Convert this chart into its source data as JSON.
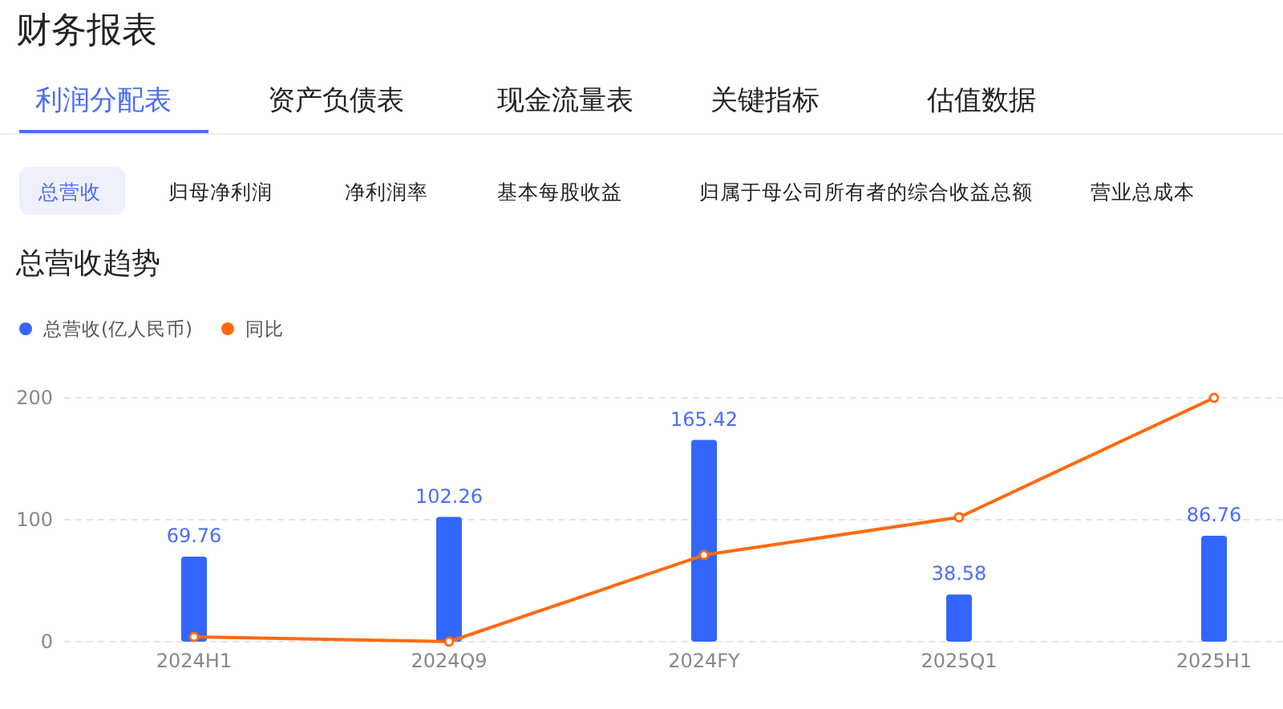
{
  "chart_data": {
    "type": "bar",
    "title": "总营收趋势",
    "annotations": [
      "财务报表",
      "利润分配表",
      "资产负债表",
      "现金流量表",
      "关键指标",
      "估值数据",
      "总营收",
      "归母净利润",
      "净利润率",
      "基本每股收益",
      "归属于母公司所有者的综合收益总额",
      "营业总成本"
    ],
    "categories": [
      "2024H1",
      "2024Q9",
      "2024FY",
      "2025Q1",
      "2025H1"
    ],
    "series": [
      {
        "name": "总营收(亿人民币)",
        "color": "#3366ff",
        "values": [
          69.76,
          102.26,
          165.42,
          38.58,
          86.76
        ],
        "value_labels": [
          "69.76",
          "102.26",
          "165.42",
          "38.58",
          "86.76"
        ]
      },
      {
        "name": "同比",
        "type": "line",
        "color": "#ff6a10",
        "values": [
          4,
          0,
          71,
          102,
          200
        ]
      }
    ],
    "ylim": [
      0,
      200
    ],
    "yticks": [
      0,
      100,
      200
    ],
    "grid": "y",
    "legend": "top left",
    "marker": "circle"
  }
}
